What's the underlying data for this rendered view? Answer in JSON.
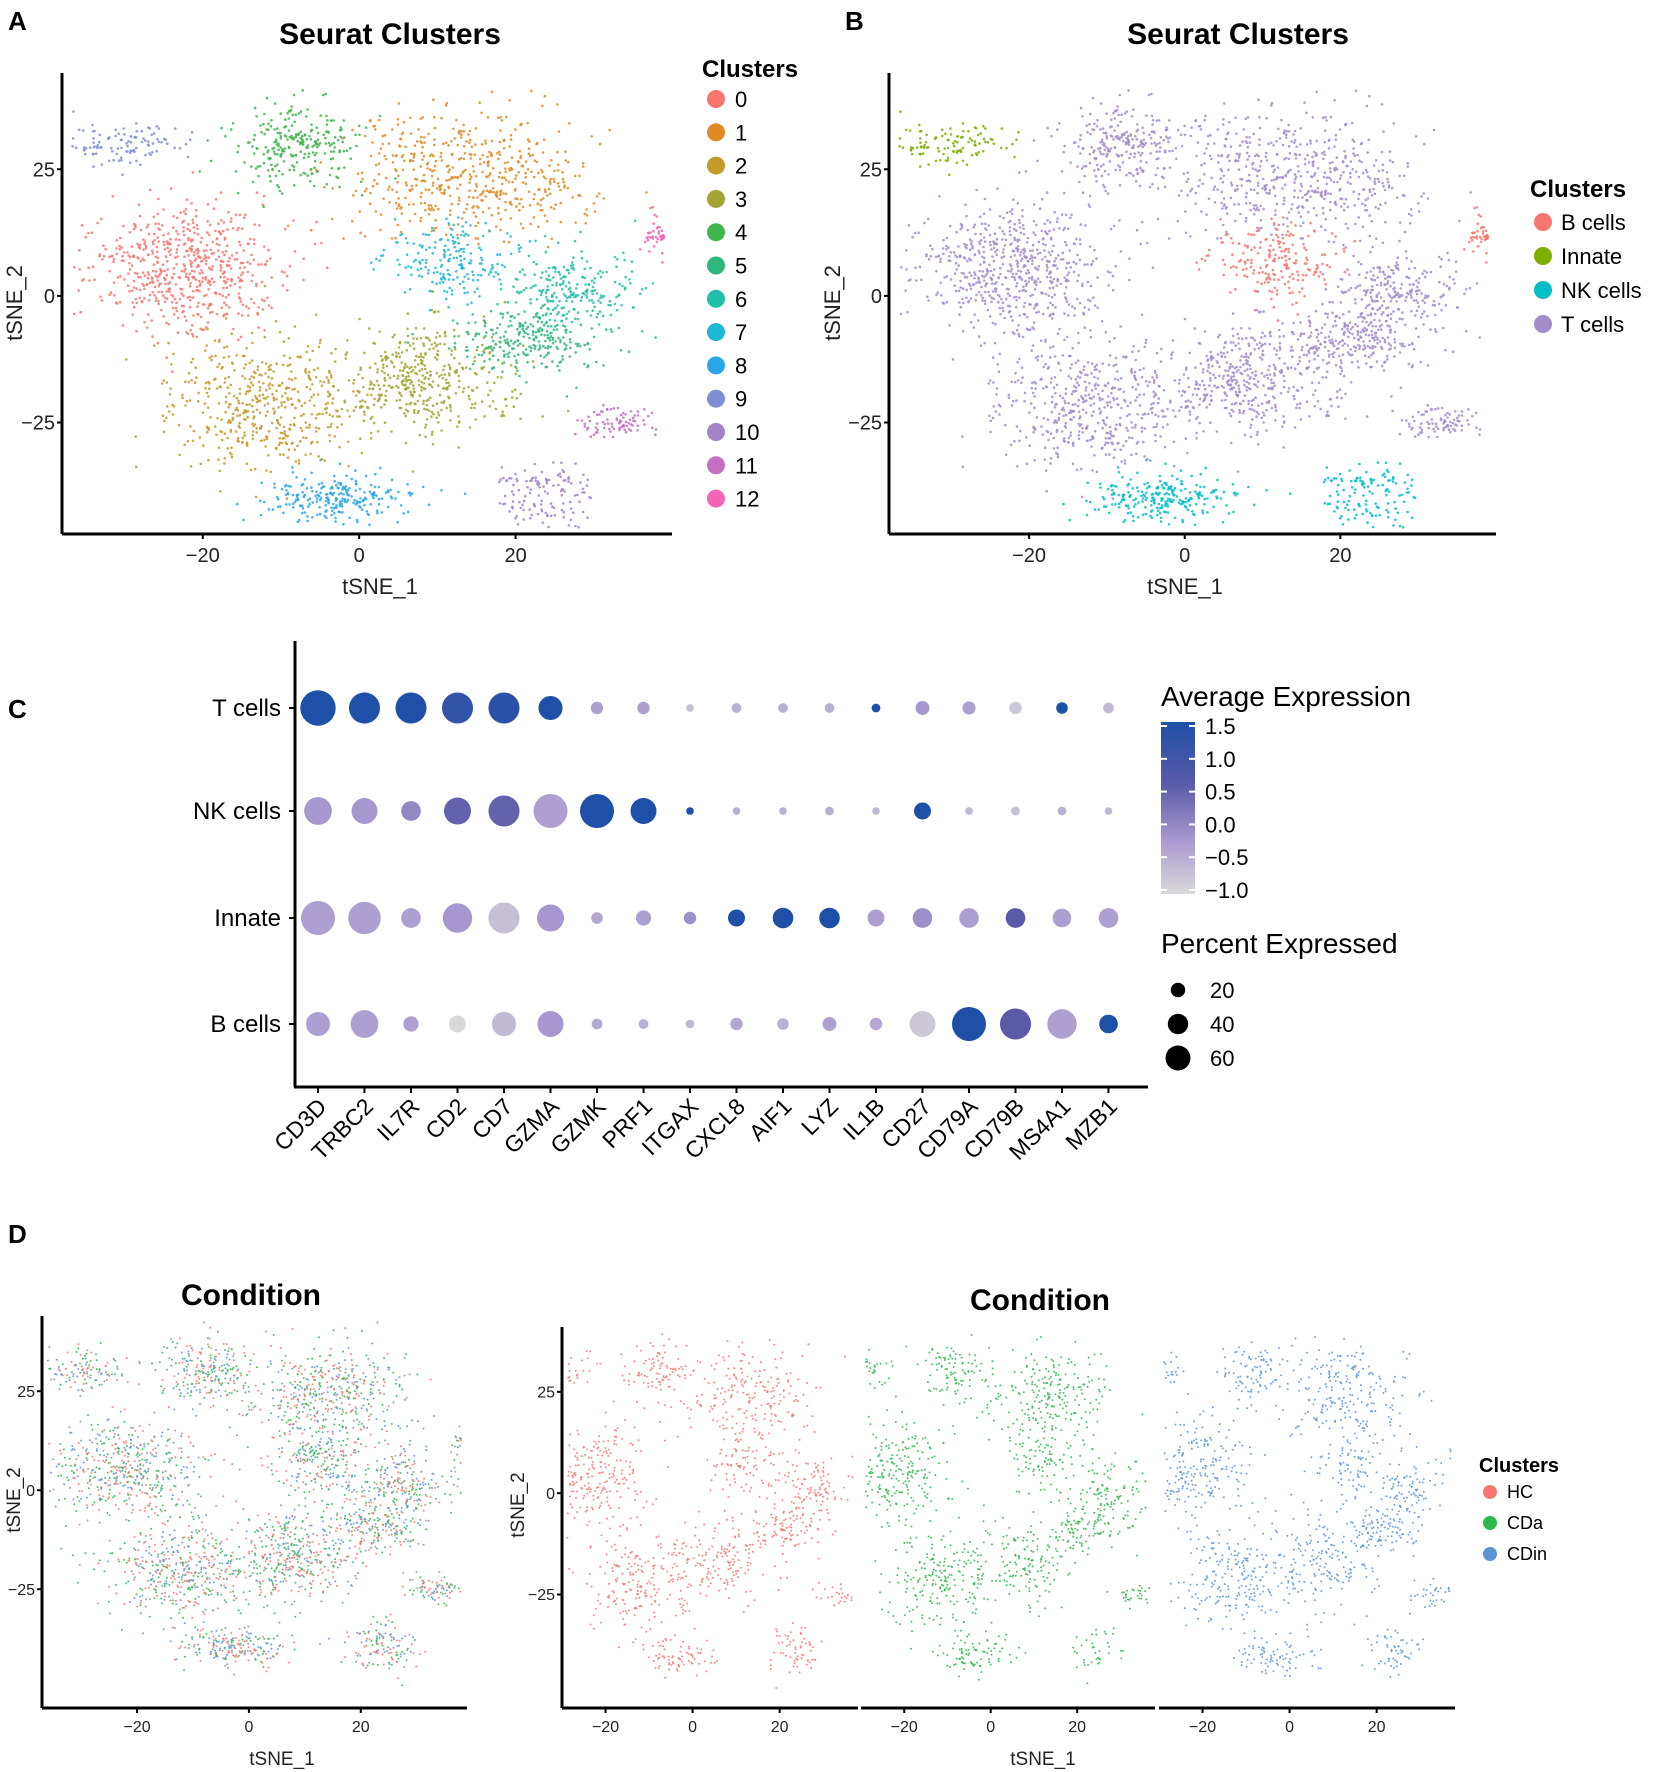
{
  "panel_labels": {
    "a": "A",
    "b": "B",
    "c": "C",
    "d": "D"
  },
  "chart_data": [
    {
      "id": "A",
      "type": "scatter",
      "title": "Seurat Clusters",
      "xlabel": "tSNE_1",
      "ylabel": "tSNE_2",
      "xlim": [
        -38,
        40
      ],
      "ylim": [
        -47,
        44
      ],
      "xticks": [
        -20,
        0,
        20
      ],
      "yticks": [
        -25,
        0,
        25
      ],
      "legend": {
        "title": "Clusters",
        "placement": "right",
        "entries": [
          {
            "label": "0",
            "color": "#F8766D"
          },
          {
            "label": "1",
            "color": "#E08B25"
          },
          {
            "label": "2",
            "color": "#C49A2C"
          },
          {
            "label": "3",
            "color": "#A3A533"
          },
          {
            "label": "4",
            "color": "#3DB54A"
          },
          {
            "label": "5",
            "color": "#2DB77B"
          },
          {
            "label": "6",
            "color": "#22BFA8"
          },
          {
            "label": "7",
            "color": "#1FB8D4"
          },
          {
            "label": "8",
            "color": "#2AA6E6"
          },
          {
            "label": "9",
            "color": "#7D8FD0"
          },
          {
            "label": "10",
            "color": "#A483C9"
          },
          {
            "label": "11",
            "color": "#C36FC4"
          },
          {
            "label": "12",
            "color": "#F564B5"
          }
        ]
      },
      "clusters": [
        {
          "cluster": "0",
          "x": -22,
          "y": 5,
          "sx": 8,
          "sy": 8,
          "weight": 14
        },
        {
          "cluster": "1",
          "x": 14,
          "y": 24,
          "sx": 9,
          "sy": 8,
          "weight": 13
        },
        {
          "cluster": "2",
          "x": -12,
          "y": -21,
          "sx": 8,
          "sy": 8,
          "weight": 12
        },
        {
          "cluster": "3",
          "x": 8,
          "y": -17,
          "sx": 7,
          "sy": 7,
          "weight": 10
        },
        {
          "cluster": "4",
          "x": -8,
          "y": 30,
          "sx": 5,
          "sy": 5,
          "weight": 6
        },
        {
          "cluster": "5",
          "x": 22,
          "y": -9,
          "sx": 6,
          "sy": 4,
          "weight": 6
        },
        {
          "cluster": "6",
          "x": 27,
          "y": 1,
          "sx": 5,
          "sy": 5,
          "weight": 6
        },
        {
          "cluster": "7",
          "x": 12,
          "y": 7,
          "sx": 5,
          "sy": 5,
          "weight": 5
        },
        {
          "cluster": "8",
          "x": -3,
          "y": -40,
          "sx": 6,
          "sy": 3,
          "weight": 5
        },
        {
          "cluster": "9",
          "x": -30,
          "y": 30,
          "sx": 5,
          "sy": 3,
          "weight": 3
        },
        {
          "cluster": "10",
          "x": 24,
          "y": -39,
          "sx": 4,
          "sy": 4,
          "weight": 3
        },
        {
          "cluster": "11",
          "x": 33,
          "y": -25,
          "sx": 3,
          "sy": 2,
          "weight": 2
        },
        {
          "cluster": "12",
          "x": 38,
          "y": 12,
          "sx": 1,
          "sy": 3,
          "weight": 1
        }
      ]
    },
    {
      "id": "B",
      "type": "scatter",
      "title": "Seurat Clusters",
      "xlabel": "tSNE_1",
      "ylabel": "tSNE_2",
      "xlim": [
        -38,
        40
      ],
      "ylim": [
        -47,
        44
      ],
      "xticks": [
        -20,
        0,
        20
      ],
      "yticks": [
        -25,
        0,
        25
      ],
      "legend": {
        "title": "Clusters",
        "placement": "right",
        "entries": [
          {
            "label": "B cells",
            "color": "#F8766D"
          },
          {
            "label": "Innate",
            "color": "#7CAE00"
          },
          {
            "label": "NK cells",
            "color": "#00BFC4"
          },
          {
            "label": "T cells",
            "color": "#A48CCB"
          }
        ]
      },
      "cluster_to_celltype": {
        "0": "T cells",
        "1": "T cells",
        "2": "T cells",
        "3": "T cells",
        "4": "T cells",
        "5": "T cells",
        "6": "T cells",
        "7": "B cells",
        "8": "NK cells",
        "9": "Innate",
        "10": "NK cells",
        "11": "T cells",
        "12": "B cells"
      }
    },
    {
      "id": "C",
      "type": "dotplot",
      "genes": [
        "CD3D",
        "TRBC2",
        "IL7R",
        "CD2",
        "CD7",
        "GZMA",
        "GZMK",
        "PRF1",
        "ITGAX",
        "CXCL8",
        "AIF1",
        "LYZ",
        "IL1B",
        "CD27",
        "CD79A",
        "CD79B",
        "MS4A1",
        "MZB1"
      ],
      "rows": [
        {
          "label": "T cells",
          "avg_exp": [
            1.5,
            1.5,
            1.5,
            1.2,
            1.3,
            1.5,
            -0.3,
            -0.3,
            -0.7,
            -0.5,
            -0.5,
            -0.5,
            1.5,
            -0.2,
            -0.3,
            -0.8,
            1.5,
            -0.6
          ],
          "pct_exp": [
            65,
            50,
            50,
            50,
            50,
            30,
            8,
            8,
            3,
            5,
            5,
            5,
            4,
            10,
            9,
            8,
            7,
            6
          ]
        },
        {
          "label": "NK cells",
          "avg_exp": [
            -0.2,
            -0.2,
            0.0,
            0.5,
            0.5,
            -0.3,
            1.5,
            1.5,
            1.5,
            -0.5,
            -0.5,
            -0.5,
            -0.6,
            1.5,
            -0.6,
            -0.7,
            -0.5,
            -0.6
          ],
          "pct_exp": [
            40,
            35,
            20,
            38,
            50,
            60,
            60,
            35,
            3,
            3,
            3,
            4,
            3,
            15,
            3,
            4,
            4,
            3
          ]
        },
        {
          "label": "Innate",
          "avg_exp": [
            -0.3,
            -0.3,
            -0.3,
            -0.2,
            -0.7,
            -0.2,
            -0.4,
            -0.3,
            -0.1,
            1.5,
            1.5,
            1.5,
            -0.3,
            -0.1,
            -0.3,
            0.6,
            -0.3,
            -0.3
          ],
          "pct_exp": [
            60,
            55,
            20,
            45,
            50,
            38,
            7,
            12,
            8,
            15,
            22,
            22,
            15,
            20,
            20,
            20,
            18,
            20
          ]
        },
        {
          "label": "B cells",
          "avg_exp": [
            -0.3,
            -0.3,
            -0.3,
            -1.0,
            -0.6,
            -0.2,
            -0.4,
            -0.5,
            -0.6,
            -0.4,
            -0.5,
            -0.3,
            -0.4,
            -0.8,
            1.5,
            0.6,
            -0.3,
            1.5
          ],
          "pct_exp": [
            30,
            40,
            12,
            15,
            30,
            35,
            6,
            5,
            4,
            8,
            7,
            10,
            8,
            35,
            60,
            50,
            45,
            18
          ]
        }
      ],
      "color_legend": {
        "title": "Average Expression",
        "range": [
          -1.0,
          1.5
        ],
        "ticks": [
          "1.5",
          "1.0",
          "0.5",
          "0.0",
          "−0.5",
          "−1.0"
        ],
        "low_color": "#D9D9D9",
        "mid_color": "#A99AD0",
        "high_color": "#1E50A8"
      },
      "size_legend": {
        "title": "Percent Expressed",
        "values": [
          20,
          40,
          60
        ],
        "labels": [
          "20",
          "40",
          "60"
        ]
      }
    },
    {
      "id": "D-merged",
      "type": "scatter",
      "title": "Condition",
      "xlabel": "tSNE_1",
      "ylabel": "tSNE_2",
      "xlim": [
        -37,
        39
      ],
      "ylim": [
        -55,
        44
      ],
      "xticks": [
        -20,
        0,
        20
      ],
      "yticks": [
        -25,
        0,
        25
      ],
      "conditions": [
        {
          "label": "HC",
          "color": "#F8766D"
        },
        {
          "label": "CDa",
          "color": "#2DB84A"
        },
        {
          "label": "CDin",
          "color": "#5B95D6"
        }
      ]
    },
    {
      "id": "D-split",
      "type": "scatter",
      "title": "Condition",
      "xlabel": "tSNE_1",
      "ylabel": "tSNE_2",
      "xlim": [
        -30,
        38
      ],
      "ylim": [
        -53,
        41
      ],
      "xticks": [
        -20,
        0,
        20
      ],
      "yticks": [
        -25,
        0,
        25
      ],
      "facets": [
        "HC",
        "CDa",
        "CDin"
      ],
      "legend": {
        "title": "Clusters",
        "placement": "right",
        "entries": [
          {
            "label": "HC",
            "color": "#F8766D"
          },
          {
            "label": "CDa",
            "color": "#2DB84A"
          },
          {
            "label": "CDin",
            "color": "#5B95D6"
          }
        ]
      }
    }
  ]
}
